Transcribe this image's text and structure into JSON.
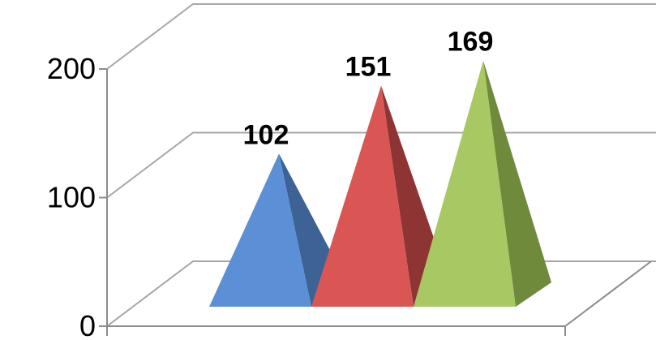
{
  "chart_data": {
    "type": "bar",
    "subtype": "3d-pyramid",
    "title": "",
    "xlabel": "",
    "ylabel": "",
    "categories": [],
    "ylim": [
      0,
      200
    ],
    "yticks": [
      0,
      100,
      200
    ],
    "grid": true,
    "legend": "none",
    "series": [
      {
        "value": 102,
        "label": "102",
        "color": "#5b8fd6",
        "shade": "#3d6296"
      },
      {
        "value": 151,
        "label": "151",
        "color": "#d95654",
        "shade": "#8e3533"
      },
      {
        "value": 169,
        "label": "169",
        "color": "#a7c863",
        "shade": "#6e8a3a"
      }
    ]
  }
}
